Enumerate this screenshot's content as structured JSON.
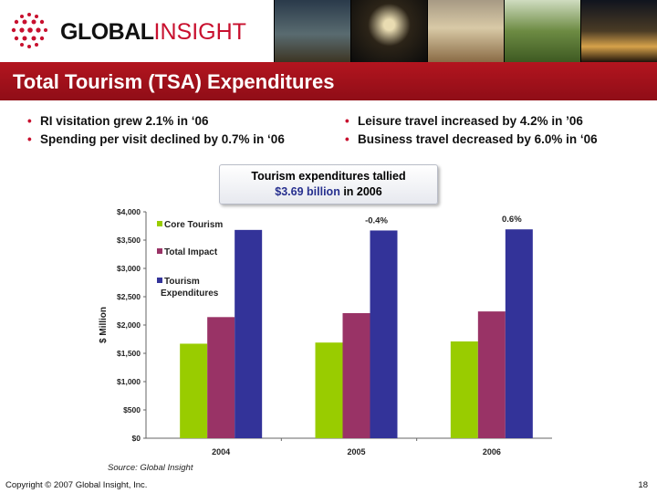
{
  "header": {
    "brand_primary": "GLOBAL",
    "brand_secondary": "INSIGHT",
    "title": "Total Tourism (TSA) Expenditures"
  },
  "bullets_left": [
    "RI visitation grew 2.1% in ‘06",
    "Spending per visit declined by 0.7% in ‘06"
  ],
  "bullets_right": [
    "Leisure travel increased by 4.2% in ’06",
    "Business travel decreased by 6.0% in ‘06"
  ],
  "callout": {
    "line1": "Tourism expenditures tallied",
    "amount": "$3.69 billion",
    "suffix": " in 2006"
  },
  "chart_data": {
    "type": "bar",
    "categories": [
      "2004",
      "2005",
      "2006"
    ],
    "series": [
      {
        "name": "Core Tourism",
        "values": [
          1670,
          1690,
          1710
        ],
        "color": "#99cc00"
      },
      {
        "name": "Total Impact",
        "values": [
          2140,
          2210,
          2240
        ],
        "color": "#993366"
      },
      {
        "name": "Tourism Expenditures",
        "values": [
          3680,
          3670,
          3690
        ],
        "color": "#333399"
      }
    ],
    "ylabel": "$ Million",
    "ylim": [
      0,
      4000
    ],
    "yticks": [
      "$0",
      "$500",
      "$1,000",
      "$1,500",
      "$2,000",
      "$2,500",
      "$3,000",
      "$3,500",
      "$4,000"
    ],
    "annotations": [
      {
        "category": "2005",
        "text": "-0.4%"
      },
      {
        "category": "2006",
        "text": "0.6%"
      }
    ],
    "legend_position": "top-left"
  },
  "source": "Source:  Global Insight",
  "copyright": "Copyright © 2007 Global Insight, Inc.",
  "page_number": "18"
}
